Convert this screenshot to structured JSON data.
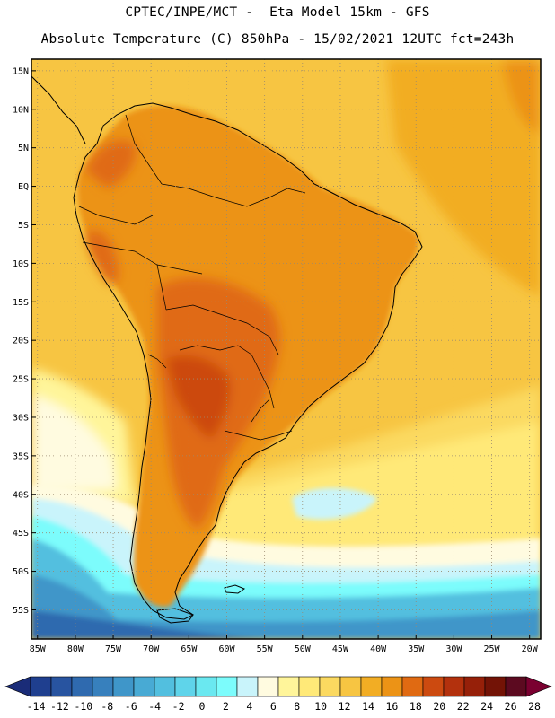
{
  "header": {
    "title_line1": "CPTEC/INPE/MCT -  Eta Model 15km - GFS",
    "title_line2": "Absolute Temperature (C) 850hPa - 15/02/2021 12UTC fct=243h"
  },
  "axes": {
    "lat_labels": [
      "15N",
      "10N",
      "5N",
      "EQ",
      "5S",
      "10S",
      "15S",
      "20S",
      "25S",
      "30S",
      "35S",
      "40S",
      "45S",
      "50S",
      "55S"
    ],
    "lat_values": [
      15,
      10,
      5,
      0,
      -5,
      -10,
      -15,
      -20,
      -25,
      -30,
      -35,
      -40,
      -45,
      -50,
      -55
    ],
    "lon_labels": [
      "85W",
      "80W",
      "75W",
      "70W",
      "65W",
      "60W",
      "55W",
      "50W",
      "45W",
      "40W",
      "35W",
      "30W",
      "25W",
      "20W"
    ],
    "lon_values": [
      -85,
      -80,
      -75,
      -70,
      -65,
      -60,
      -55,
      -50,
      -45,
      -40,
      -35,
      -30,
      -25,
      -20
    ]
  },
  "colorbar": {
    "labels": [
      "-14",
      "-12",
      "-10",
      "-8",
      "-6",
      "-4",
      "-2",
      "0",
      "2",
      "4",
      "6",
      "8",
      "10",
      "12",
      "14",
      "16",
      "18",
      "20",
      "22",
      "24",
      "26",
      "28"
    ],
    "colors": [
      "#1f3f8f",
      "#2854a0",
      "#2f6aaf",
      "#3780bd",
      "#3f96c9",
      "#48aad4",
      "#52bfdf",
      "#5fd4ea",
      "#6ae8f0",
      "#7cfcfc",
      "#c9f4fb",
      "#fffbe0",
      "#fff59a",
      "#ffe978",
      "#fbd960",
      "#f7c542",
      "#f2ad24",
      "#ec9316",
      "#e06a12",
      "#cc4a10",
      "#b3310d",
      "#962009",
      "#731306",
      "#5c0a20"
    ],
    "under_color": "#1a2c78",
    "over_color": "#7a0030"
  },
  "map": {
    "ocean_base_color": "#f7c542",
    "continent_color": "#ec9316",
    "hot_core_color": "#cc4a10",
    "south_cold_color": "#3f96c9",
    "coast_color": "#000000",
    "grid_color": "#9a8a70"
  }
}
